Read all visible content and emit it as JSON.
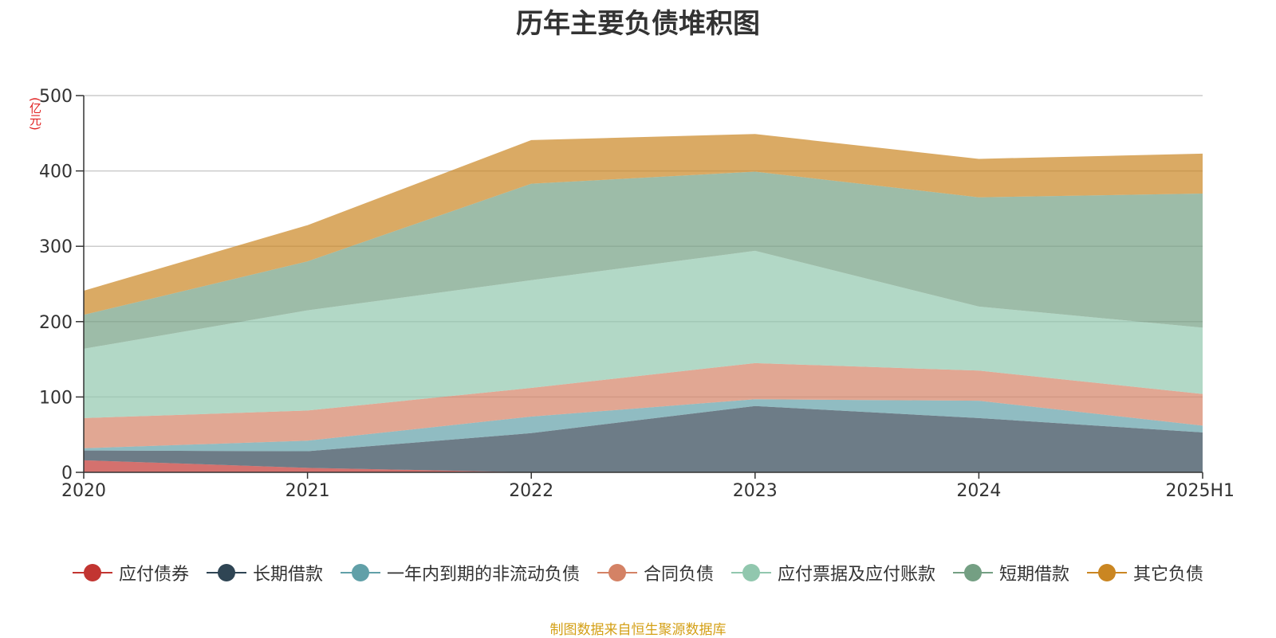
{
  "title": "历年主要负债堆积图",
  "source": "制图数据来自恒生聚源数据库",
  "chart_data": {
    "type": "area",
    "stacked": true,
    "title": "历年主要负债堆积图",
    "unit_label": "(亿元)",
    "categories": [
      "2020",
      "2021",
      "2022",
      "2023",
      "2024",
      "2025H1"
    ],
    "ylim": [
      0,
      500
    ],
    "yticks": [
      "0",
      "100",
      "200",
      "300",
      "400",
      "500"
    ],
    "grid": true,
    "legend_position": "bottom",
    "series": [
      {
        "name": "应付债券",
        "color": "#c23531",
        "values": [
          16,
          6,
          0,
          0,
          0,
          0
        ]
      },
      {
        "name": "长期借款",
        "color": "#2f4554",
        "values": [
          13,
          22,
          52,
          88,
          72,
          53
        ]
      },
      {
        "name": "一年内到期的非流动负债",
        "color": "#61a0a8",
        "values": [
          3,
          14,
          22,
          9,
          23,
          9
        ]
      },
      {
        "name": "合同负债",
        "color": "#d48265",
        "values": [
          40,
          40,
          38,
          48,
          40,
          42
        ]
      },
      {
        "name": "应付票据及应付账款",
        "color": "#91c7ae",
        "values": [
          92,
          133,
          143,
          149,
          85,
          88
        ]
      },
      {
        "name": "短期借款",
        "color": "#749f83",
        "values": [
          45,
          65,
          128,
          105,
          145,
          178
        ]
      },
      {
        "name": "其它负债",
        "color": "#ca8622",
        "values": [
          32,
          48,
          58,
          50,
          51,
          53
        ]
      }
    ]
  }
}
